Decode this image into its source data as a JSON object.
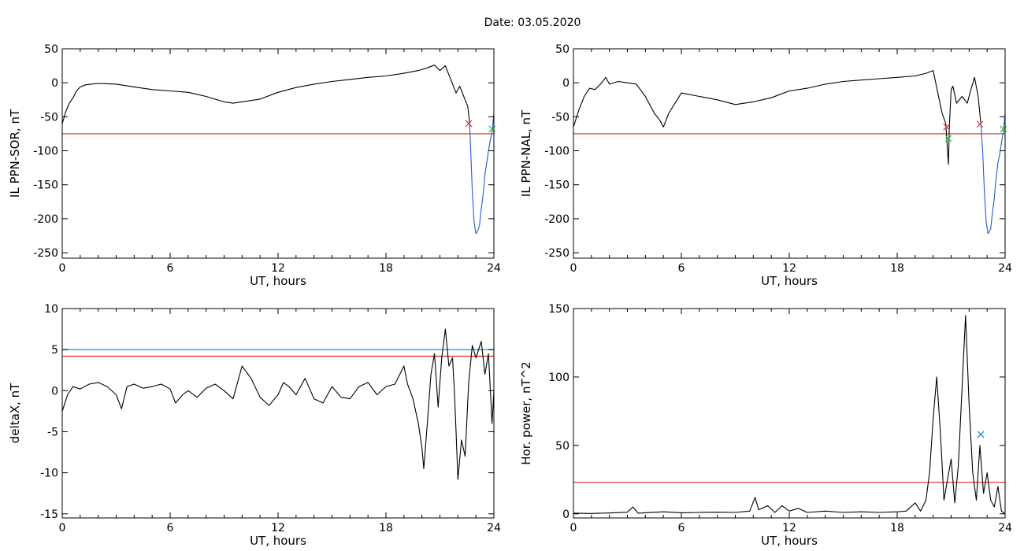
{
  "date_label": "Date:  03.05.2020",
  "chart_data": [
    {
      "id": "p1",
      "type": "line",
      "title": "",
      "xlabel": "UT, hours",
      "ylabel": "IL PPN-SOR, nT",
      "xlim": [
        0,
        24
      ],
      "ylim": [
        -258,
        50
      ],
      "xticks": [
        0,
        6,
        12,
        18,
        24
      ],
      "yticks": [
        50,
        0,
        -50,
        -100,
        -150,
        -200,
        -250
      ],
      "series": [
        {
          "color": "#000000",
          "points": [
            [
              0,
              -60
            ],
            [
              0.2,
              -42
            ],
            [
              0.4,
              -30
            ],
            [
              0.6,
              -22
            ],
            [
              0.8,
              -12
            ],
            [
              1.0,
              -6
            ],
            [
              1.3,
              -3
            ],
            [
              1.6,
              -2
            ],
            [
              2.0,
              -1
            ],
            [
              3.0,
              -2
            ],
            [
              4.0,
              -6
            ],
            [
              5.0,
              -10
            ],
            [
              6.0,
              -12
            ],
            [
              7.0,
              -14
            ],
            [
              8.0,
              -20
            ],
            [
              9.0,
              -28
            ],
            [
              9.5,
              -30
            ],
            [
              10.0,
              -28
            ],
            [
              11.0,
              -24
            ],
            [
              12.0,
              -14
            ],
            [
              13.0,
              -7
            ],
            [
              14.0,
              -2
            ],
            [
              15.0,
              2
            ],
            [
              16.0,
              5
            ],
            [
              17.0,
              8
            ],
            [
              18.0,
              10
            ],
            [
              19.0,
              14
            ],
            [
              19.8,
              18
            ],
            [
              20.3,
              22
            ],
            [
              20.7,
              26
            ],
            [
              21.0,
              18
            ],
            [
              21.3,
              25
            ],
            [
              21.6,
              5
            ],
            [
              21.9,
              -15
            ],
            [
              22.1,
              -5
            ],
            [
              22.4,
              -25
            ],
            [
              22.55,
              -35
            ],
            [
              22.65,
              -60
            ]
          ]
        },
        {
          "color": "#1f5fd0",
          "points": [
            [
              22.65,
              -60
            ],
            [
              22.7,
              -90
            ],
            [
              22.8,
              -160
            ],
            [
              22.9,
              -205
            ],
            [
              23.0,
              -222
            ],
            [
              23.1,
              -218
            ],
            [
              23.2,
              -210
            ],
            [
              23.3,
              -185
            ],
            [
              23.4,
              -165
            ],
            [
              23.5,
              -135
            ],
            [
              23.6,
              -118
            ],
            [
              23.7,
              -100
            ],
            [
              23.8,
              -85
            ],
            [
              23.9,
              -72
            ],
            [
              24.0,
              -45
            ]
          ]
        }
      ],
      "hlines": [
        {
          "y": -75,
          "color": "#e02020"
        }
      ],
      "markers": [
        {
          "x": 22.6,
          "y": -60,
          "color": "#e03030"
        },
        {
          "x": 23.9,
          "y": -68,
          "color": "#30c030"
        }
      ]
    },
    {
      "id": "p2",
      "type": "line",
      "title": "",
      "xlabel": "UT, hours",
      "ylabel": "IL PPN-NAL, nT",
      "xlim": [
        0,
        24
      ],
      "ylim": [
        -258,
        50
      ],
      "xticks": [
        0,
        6,
        12,
        18,
        24
      ],
      "yticks": [
        50,
        0,
        -50,
        -100,
        -150,
        -200,
        -250
      ],
      "series": [
        {
          "color": "#000000",
          "points": [
            [
              0,
              -65
            ],
            [
              0.3,
              -40
            ],
            [
              0.6,
              -20
            ],
            [
              0.9,
              -8
            ],
            [
              1.2,
              -10
            ],
            [
              1.5,
              -2
            ],
            [
              1.8,
              8
            ],
            [
              2.0,
              -2
            ],
            [
              2.5,
              2
            ],
            [
              3.0,
              0
            ],
            [
              3.5,
              -2
            ],
            [
              4.0,
              -20
            ],
            [
              4.5,
              -45
            ],
            [
              4.8,
              -55
            ],
            [
              5.0,
              -65
            ],
            [
              5.3,
              -45
            ],
            [
              6.0,
              -15
            ],
            [
              7.0,
              -20
            ],
            [
              8.0,
              -25
            ],
            [
              9.0,
              -32
            ],
            [
              10.0,
              -28
            ],
            [
              11.0,
              -22
            ],
            [
              12.0,
              -12
            ],
            [
              13.0,
              -8
            ],
            [
              14.0,
              -2
            ],
            [
              15.0,
              2
            ],
            [
              16.0,
              4
            ],
            [
              17.0,
              6
            ],
            [
              18.0,
              8
            ],
            [
              19.0,
              10
            ],
            [
              19.6,
              14
            ],
            [
              20.0,
              18
            ],
            [
              20.3,
              -20
            ],
            [
              20.5,
              -45
            ],
            [
              20.7,
              -60
            ],
            [
              20.8,
              -100
            ],
            [
              20.85,
              -120
            ],
            [
              20.9,
              -65
            ],
            [
              21.0,
              -10
            ],
            [
              21.1,
              -5
            ],
            [
              21.3,
              -30
            ],
            [
              21.6,
              -20
            ],
            [
              21.9,
              -30
            ],
            [
              22.1,
              -10
            ],
            [
              22.3,
              8
            ],
            [
              22.5,
              -20
            ],
            [
              22.65,
              -60
            ]
          ]
        },
        {
          "color": "#1f5fd0",
          "points": [
            [
              22.65,
              -60
            ],
            [
              22.75,
              -100
            ],
            [
              22.85,
              -160
            ],
            [
              22.95,
              -205
            ],
            [
              23.05,
              -222
            ],
            [
              23.2,
              -215
            ],
            [
              23.3,
              -190
            ],
            [
              23.4,
              -170
            ],
            [
              23.5,
              -140
            ],
            [
              23.6,
              -118
            ],
            [
              23.7,
              -105
            ],
            [
              23.8,
              -88
            ],
            [
              23.9,
              -72
            ],
            [
              24.0,
              -45
            ]
          ]
        }
      ],
      "hlines": [
        {
          "y": -75,
          "color": "#e02020"
        }
      ],
      "markers": [
        {
          "x": 20.75,
          "y": -65,
          "color": "#e03030"
        },
        {
          "x": 20.85,
          "y": -82,
          "color": "#30c030"
        },
        {
          "x": 22.6,
          "y": -61,
          "color": "#e03030"
        },
        {
          "x": 23.9,
          "y": -68,
          "color": "#30c030"
        }
      ]
    },
    {
      "id": "p3",
      "type": "line",
      "title": "",
      "xlabel": "UT, hours",
      "ylabel": "deltaX, nT",
      "xlim": [
        0,
        24
      ],
      "ylim": [
        -15.5,
        10
      ],
      "xticks": [
        0,
        6,
        12,
        18,
        24
      ],
      "yticks": [
        10,
        5,
        0,
        -5,
        -10,
        -15
      ],
      "series": [
        {
          "color": "#000000",
          "points": [
            [
              0,
              -2.5
            ],
            [
              0.3,
              -0.5
            ],
            [
              0.6,
              0.5
            ],
            [
              1.0,
              0.2
            ],
            [
              1.5,
              0.8
            ],
            [
              2.0,
              1.0
            ],
            [
              2.5,
              0.5
            ],
            [
              3.0,
              -0.5
            ],
            [
              3.3,
              -2.2
            ],
            [
              3.6,
              0.5
            ],
            [
              4.0,
              0.8
            ],
            [
              4.5,
              0.3
            ],
            [
              5.0,
              0.5
            ],
            [
              5.5,
              0.8
            ],
            [
              6.0,
              0.2
            ],
            [
              6.3,
              -1.5
            ],
            [
              6.7,
              -0.5
            ],
            [
              7.0,
              0.0
            ],
            [
              7.5,
              -0.8
            ],
            [
              8.0,
              0.3
            ],
            [
              8.5,
              0.8
            ],
            [
              9.0,
              0.0
            ],
            [
              9.5,
              -1.0
            ],
            [
              10.0,
              3.0
            ],
            [
              10.5,
              1.5
            ],
            [
              11.0,
              -0.8
            ],
            [
              11.5,
              -1.8
            ],
            [
              12.0,
              -0.5
            ],
            [
              12.3,
              1.0
            ],
            [
              12.6,
              0.5
            ],
            [
              13.0,
              -0.5
            ],
            [
              13.5,
              1.5
            ],
            [
              14.0,
              -1.0
            ],
            [
              14.5,
              -1.5
            ],
            [
              15.0,
              0.5
            ],
            [
              15.5,
              -0.8
            ],
            [
              16.0,
              -1.0
            ],
            [
              16.5,
              0.5
            ],
            [
              17.0,
              1.0
            ],
            [
              17.5,
              -0.5
            ],
            [
              18.0,
              0.5
            ],
            [
              18.5,
              0.8
            ],
            [
              19.0,
              3.0
            ],
            [
              19.2,
              0.8
            ],
            [
              19.5,
              -1.0
            ],
            [
              19.8,
              -4.0
            ],
            [
              20.0,
              -7.0
            ],
            [
              20.1,
              -9.5
            ],
            [
              20.3,
              -4.0
            ],
            [
              20.5,
              2.0
            ],
            [
              20.7,
              4.5
            ],
            [
              20.9,
              -2.0
            ],
            [
              21.1,
              4.0
            ],
            [
              21.3,
              7.5
            ],
            [
              21.5,
              3.0
            ],
            [
              21.7,
              4.0
            ],
            [
              21.8,
              0.0
            ],
            [
              21.9,
              -5.0
            ],
            [
              22.0,
              -10.8
            ],
            [
              22.2,
              -6.0
            ],
            [
              22.4,
              -8.0
            ],
            [
              22.6,
              1.0
            ],
            [
              22.8,
              5.5
            ],
            [
              23.0,
              4.0
            ],
            [
              23.3,
              6.0
            ],
            [
              23.5,
              2.0
            ],
            [
              23.7,
              4.5
            ],
            [
              23.9,
              -4.0
            ],
            [
              24.0,
              0.0
            ]
          ]
        }
      ],
      "hlines": [
        {
          "y": 5.0,
          "color": "#1a8fc8"
        },
        {
          "y": 4.2,
          "color": "#e02020"
        }
      ],
      "markers": []
    },
    {
      "id": "p4",
      "type": "line",
      "title": "",
      "xlabel": "UT, hours",
      "ylabel": "Hor. power, nT^2",
      "xlim": [
        0,
        24
      ],
      "ylim": [
        -3,
        150
      ],
      "xticks": [
        0,
        6,
        12,
        18,
        24
      ],
      "yticks": [
        150,
        100,
        50,
        0
      ],
      "series": [
        {
          "color": "#000000",
          "points": [
            [
              0,
              0.5
            ],
            [
              1,
              0.3
            ],
            [
              2,
              0.6
            ],
            [
              3,
              1.2
            ],
            [
              3.3,
              5
            ],
            [
              3.6,
              0.5
            ],
            [
              4,
              0.8
            ],
            [
              5,
              1.5
            ],
            [
              6,
              0.8
            ],
            [
              7,
              1
            ],
            [
              8,
              1.2
            ],
            [
              9,
              1
            ],
            [
              9.8,
              2
            ],
            [
              10.1,
              12
            ],
            [
              10.3,
              3
            ],
            [
              10.8,
              6
            ],
            [
              11.2,
              1
            ],
            [
              11.6,
              6
            ],
            [
              12,
              2
            ],
            [
              12.5,
              4
            ],
            [
              13,
              1
            ],
            [
              14,
              2
            ],
            [
              15,
              1
            ],
            [
              16,
              1.5
            ],
            [
              17,
              1
            ],
            [
              18,
              1.5
            ],
            [
              18.5,
              2
            ],
            [
              19,
              8
            ],
            [
              19.3,
              2
            ],
            [
              19.6,
              10
            ],
            [
              19.8,
              30
            ],
            [
              20.0,
              70
            ],
            [
              20.2,
              100
            ],
            [
              20.4,
              60
            ],
            [
              20.6,
              10
            ],
            [
              20.8,
              25
            ],
            [
              21.0,
              40
            ],
            [
              21.2,
              8
            ],
            [
              21.4,
              35
            ],
            [
              21.6,
              90
            ],
            [
              21.8,
              145
            ],
            [
              22.0,
              80
            ],
            [
              22.2,
              30
            ],
            [
              22.4,
              10
            ],
            [
              22.6,
              50
            ],
            [
              22.8,
              15
            ],
            [
              23.0,
              30
            ],
            [
              23.2,
              10
            ],
            [
              23.4,
              5
            ],
            [
              23.6,
              20
            ],
            [
              23.8,
              2
            ],
            [
              24.0,
              0
            ]
          ]
        }
      ],
      "hlines": [
        {
          "y": 23,
          "color": "#e02020"
        }
      ],
      "markers": [
        {
          "x": 22.65,
          "y": 58,
          "color": "#1a7fd0"
        }
      ]
    }
  ]
}
